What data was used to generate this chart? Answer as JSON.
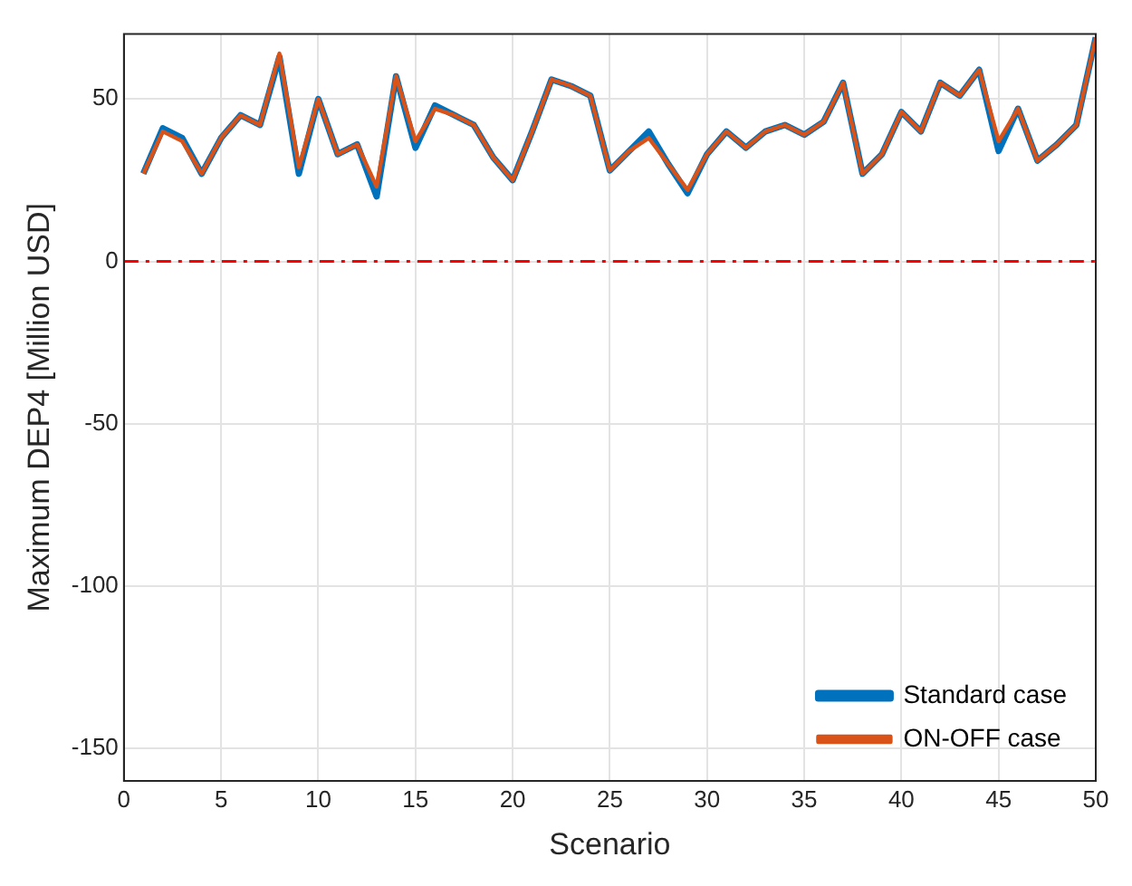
{
  "chart_data": {
    "type": "line",
    "xlabel": "Scenario",
    "ylabel": "Maximum DEP4 [Million USD]",
    "x": [
      1,
      2,
      3,
      4,
      5,
      6,
      7,
      8,
      9,
      10,
      11,
      12,
      13,
      14,
      15,
      16,
      17,
      18,
      19,
      20,
      21,
      22,
      23,
      24,
      25,
      26,
      27,
      28,
      29,
      30,
      31,
      32,
      33,
      34,
      35,
      36,
      37,
      38,
      39,
      40,
      41,
      42,
      43,
      44,
      45,
      46,
      47,
      48,
      49,
      50
    ],
    "series": [
      {
        "name": "Standard case",
        "color": "#0072bd",
        "values": [
          27,
          41,
          38,
          27,
          38,
          45,
          42,
          63,
          27,
          50,
          33,
          36,
          20,
          57,
          35,
          48,
          45,
          42,
          32,
          25,
          40,
          56,
          54,
          51,
          28,
          34,
          40,
          30,
          21,
          33,
          40,
          35,
          40,
          42,
          39,
          43,
          55,
          27,
          33,
          46,
          40,
          55,
          51,
          59,
          34,
          47,
          31,
          36,
          42,
          69
        ]
      },
      {
        "name": "ON-OFF case",
        "color": "#d95319",
        "values": [
          27,
          40,
          37,
          27,
          38,
          45,
          42,
          64,
          29,
          50,
          33,
          36,
          23,
          57,
          37,
          47,
          45,
          42,
          32,
          25,
          40,
          56,
          54,
          51,
          28,
          34,
          38,
          30,
          22,
          33,
          40,
          35,
          40,
          42,
          39,
          43,
          55,
          27,
          33,
          46,
          40,
          55,
          51,
          59,
          37,
          47,
          31,
          36,
          42,
          69
        ]
      }
    ],
    "xlim": [
      0,
      50
    ],
    "xticks": [
      0,
      5,
      10,
      15,
      20,
      25,
      30,
      35,
      40,
      45,
      50
    ],
    "ylim": [
      -160,
      70
    ],
    "yticks": [
      -150,
      -100,
      -50,
      0,
      50
    ],
    "ref_lines": [
      {
        "axis": "y",
        "value": 0,
        "color": "#ff0000",
        "line_style": "dashed"
      }
    ],
    "grid": true,
    "legend": "bottom right",
    "marker": "none",
    "line_style": "solid"
  }
}
